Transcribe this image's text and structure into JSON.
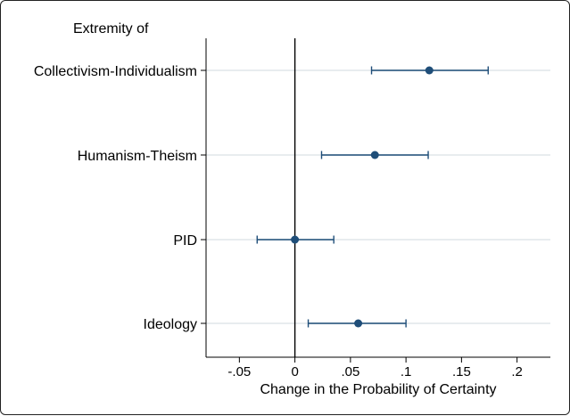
{
  "chart_data": {
    "type": "coefficient_plot",
    "title": "Extremity of",
    "xlabel": "Change in the Probability of Certainty",
    "ylabel": "",
    "xlim": [
      -0.08,
      0.23
    ],
    "xticks": [
      {
        "value": -0.05,
        "label": "-.05"
      },
      {
        "value": 0,
        "label": "0"
      },
      {
        "value": 0.05,
        "label": ".05"
      },
      {
        "value": 0.1,
        "label": ".1"
      },
      {
        "value": 0.15,
        "label": ".15"
      },
      {
        "value": 0.2,
        "label": ".2"
      }
    ],
    "grid": "horizontal",
    "reference_line": 0,
    "series": [
      {
        "label": "Collectivism-Individualism",
        "estimate": 0.121,
        "ci_low": 0.069,
        "ci_high": 0.174
      },
      {
        "label": "Humanism-Theism",
        "estimate": 0.072,
        "ci_low": 0.024,
        "ci_high": 0.12
      },
      {
        "label": "PID",
        "estimate": 0.0,
        "ci_low": -0.034,
        "ci_high": 0.035
      },
      {
        "label": "Ideology",
        "estimate": 0.057,
        "ci_low": 0.012,
        "ci_high": 0.1
      }
    ],
    "colors": {
      "marker": "#1f4e79",
      "grid": "#e8ecef",
      "axis": "#000000",
      "title": "#2c3e6b"
    }
  }
}
